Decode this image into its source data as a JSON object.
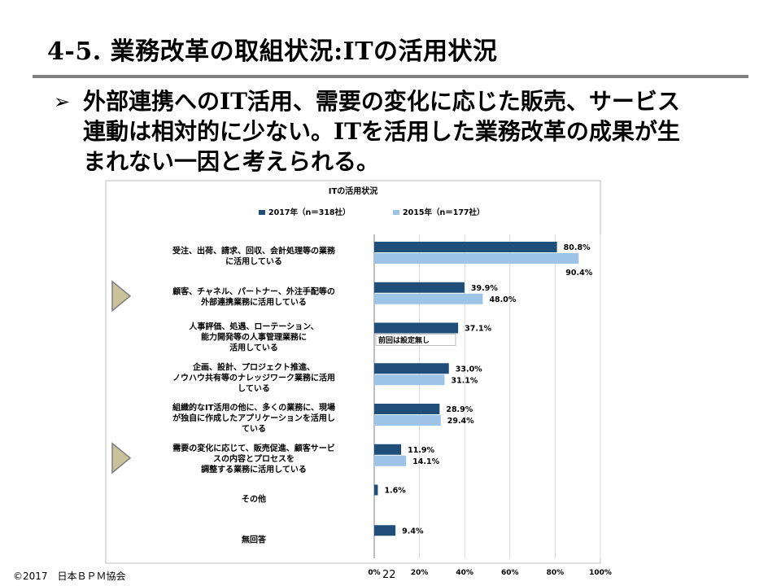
{
  "slide": {
    "title": "4-5. 業務改革の取組状況:ITの活用状況",
    "bullet_marker": "➢",
    "bullet_lines": [
      "外部連携へのIT活用、需要の変化に応じた販売、サービス",
      "連動は相対的に少ない。ITを活用した業務改革の成果が生",
      "まれない一因と考えられる。"
    ],
    "copyright": "©2017　日本ＢＰＭ協会",
    "page_number": "22"
  },
  "chart_data": {
    "type": "bar",
    "orientation": "horizontal",
    "title": "ITの活用状況",
    "categories": [
      [
        "受注、出荷、請求、回収、会計処理等の業務",
        "に活用している"
      ],
      [
        "顧客、チャネル、パートナー、外注手配等の",
        "外部連携業務に活用している"
      ],
      [
        "人事評価、処遇、ローテーション、",
        "能力開発等の人事管理業務に",
        "活用している"
      ],
      [
        "企画、設計、プロジェクト推進、",
        "ノウハウ共有等のナレッジワーク業務に活用",
        "している"
      ],
      [
        "組織的なIT活用の他に、多くの業務に、現場",
        "が独自に作成したアプリケーションを活用し",
        "ている"
      ],
      [
        "需要の変化に応じて、販売促進、顧客サービ",
        "スの内容とプロセスを",
        "調整する業務に活用している"
      ],
      [
        "その他"
      ],
      [
        "無回答"
      ]
    ],
    "series": [
      {
        "name": "2017年（n＝318社）",
        "color": "#1f4e79",
        "values": [
          80.8,
          39.9,
          37.1,
          33.0,
          28.9,
          11.9,
          1.6,
          9.4
        ]
      },
      {
        "name": "2015年（n＝177社）",
        "color": "#9dc3e6",
        "values": [
          90.4,
          48.0,
          null,
          31.1,
          29.4,
          14.1,
          null,
          null
        ]
      }
    ],
    "data_labels": [
      [
        "80.8%",
        "39.9%",
        "37.1%",
        "33.0%",
        "28.9%",
        "11.9%",
        "1.6%",
        "9.4%"
      ],
      [
        "90.4%",
        "48.0%",
        "",
        "31.1%",
        "29.4%",
        "14.1%",
        "",
        ""
      ]
    ],
    "annotation": "前回は設定無し",
    "highlighted_categories": [
      1,
      5
    ],
    "xlim": [
      0,
      100
    ],
    "x_ticks": [
      "0%",
      "20%",
      "40%",
      "60%",
      "80%",
      "100%"
    ],
    "x_tick_values": [
      0,
      20,
      40,
      60,
      80,
      100
    ],
    "grid": "vertical",
    "legend_position": "top"
  }
}
